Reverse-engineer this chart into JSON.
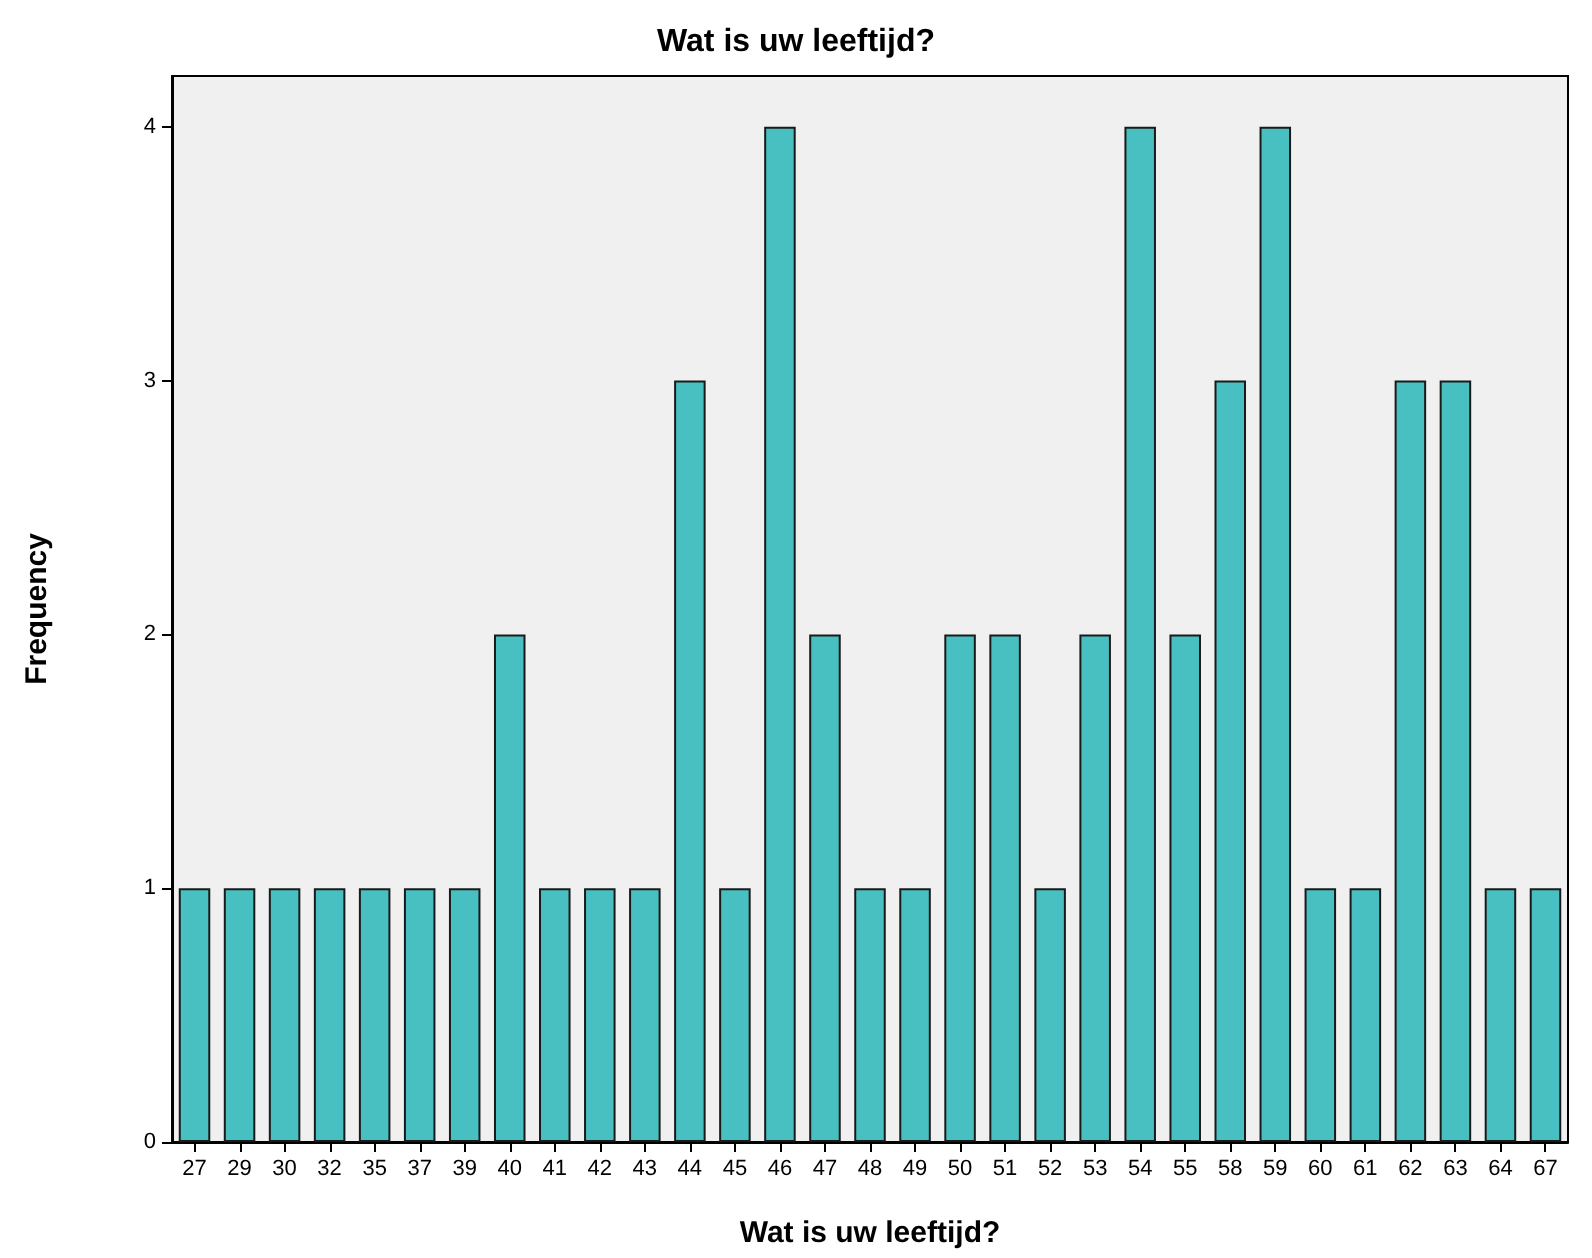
{
  "chart_data": {
    "type": "bar",
    "title": "Wat is uw leeftijd?",
    "xlabel": "Wat is uw leeftijd?",
    "ylabel": "Frequency",
    "categories": [
      "27",
      "29",
      "30",
      "32",
      "35",
      "37",
      "39",
      "40",
      "41",
      "42",
      "43",
      "44",
      "45",
      "46",
      "47",
      "48",
      "49",
      "50",
      "51",
      "52",
      "53",
      "54",
      "55",
      "58",
      "59",
      "60",
      "61",
      "62",
      "63",
      "64",
      "67"
    ],
    "values": [
      1,
      1,
      1,
      1,
      1,
      1,
      1,
      2,
      1,
      1,
      1,
      3,
      1,
      4,
      2,
      1,
      1,
      2,
      2,
      1,
      2,
      4,
      2,
      3,
      4,
      1,
      1,
      3,
      3,
      1,
      1
    ],
    "color": "#48c0c2",
    "ylim": [
      0,
      4.2
    ],
    "yticks": [
      0,
      1,
      2,
      3,
      4
    ],
    "grid": false
  }
}
